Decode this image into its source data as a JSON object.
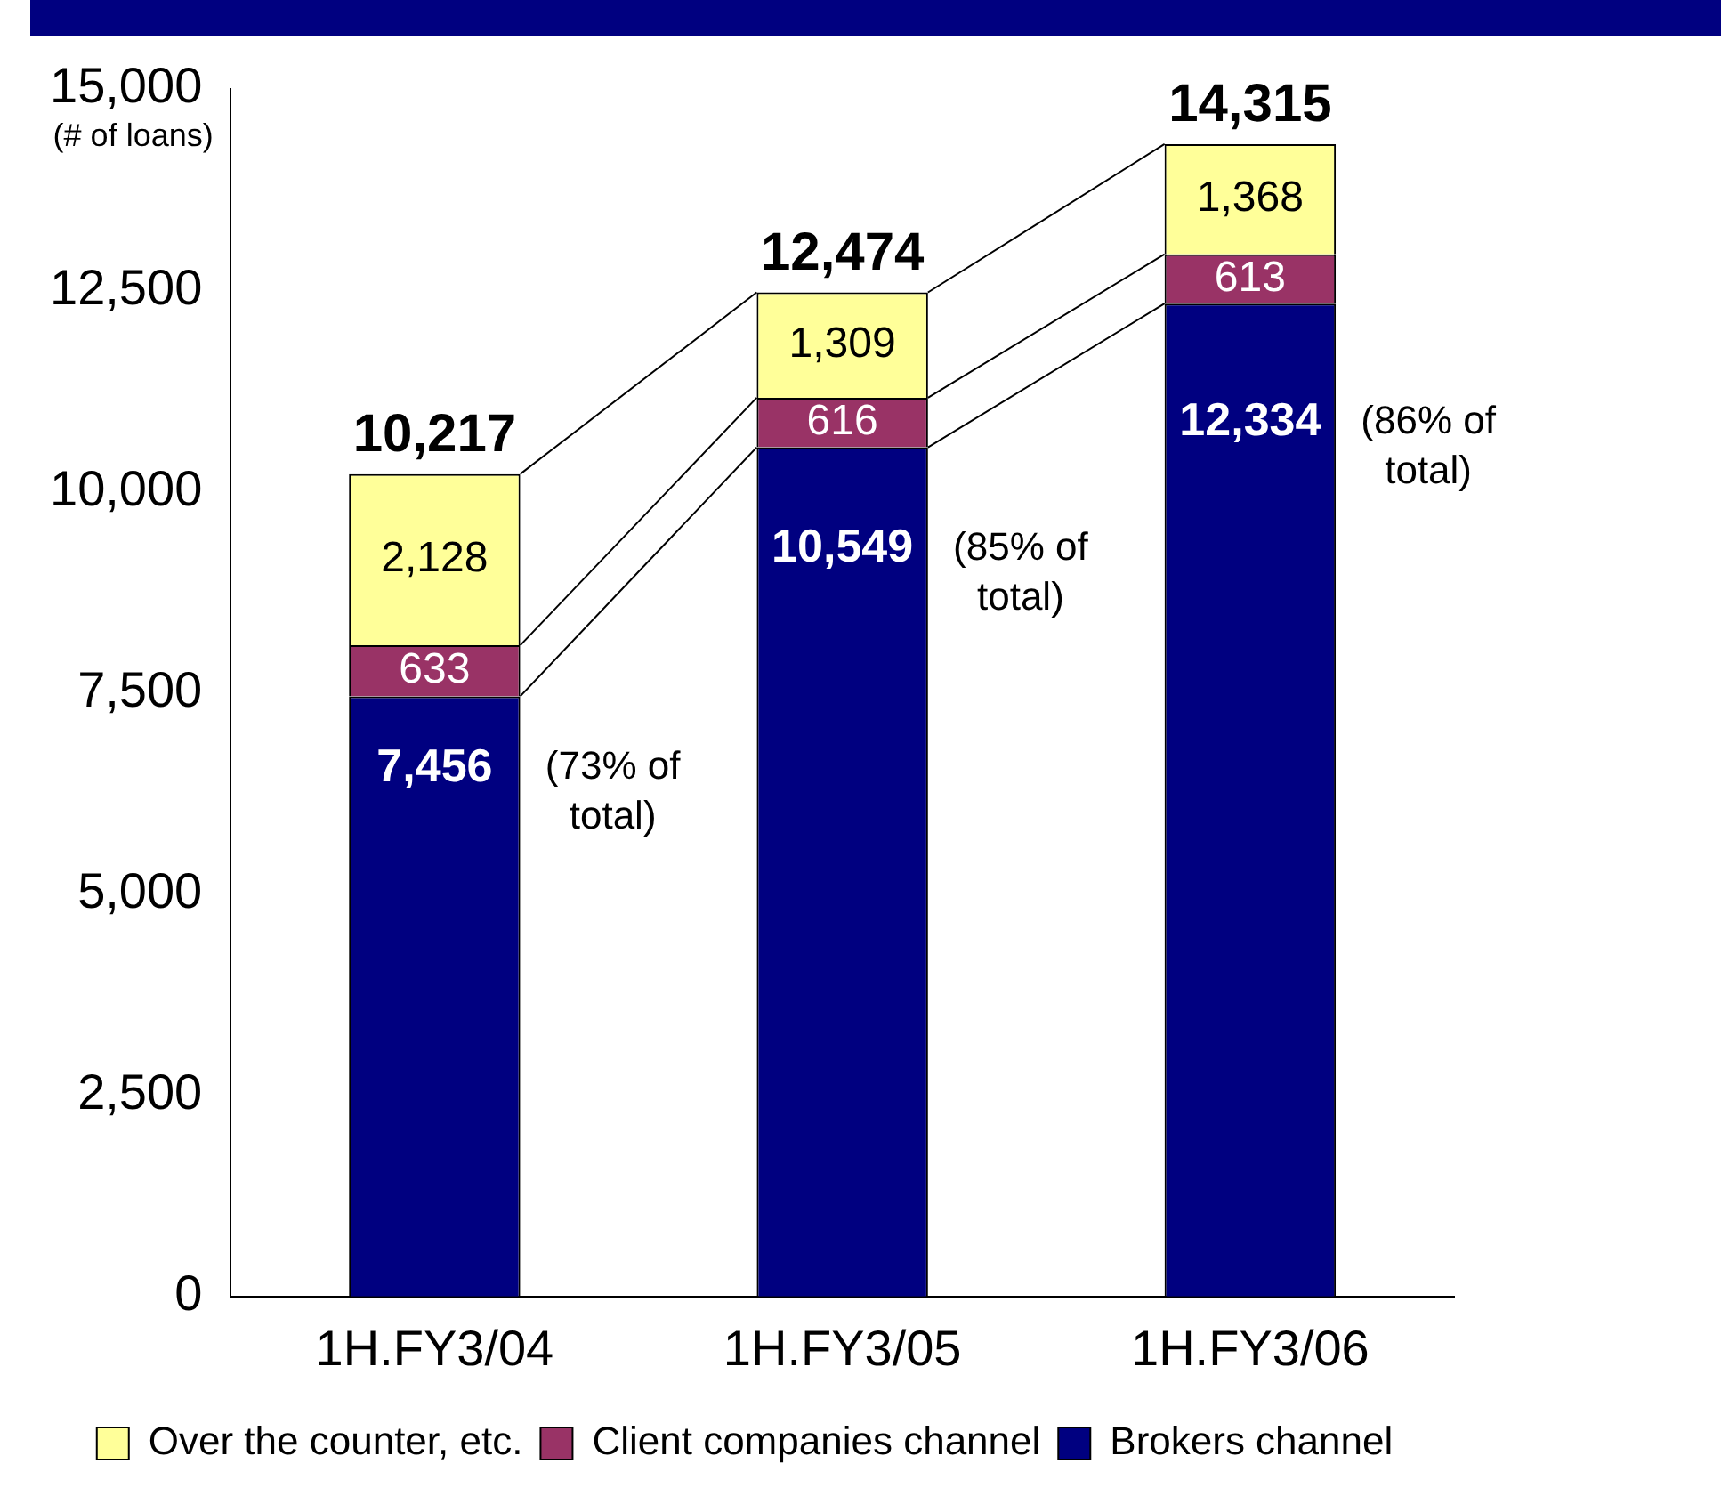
{
  "chart_data": {
    "type": "bar",
    "stacked": true,
    "ylabel": "(# of loans)",
    "categories": [
      "1H.FY3/04",
      "1H.FY3/05",
      "1H.FY3/06"
    ],
    "series": [
      {
        "name": "Brokers channel",
        "color": "#000080",
        "values": [
          7456,
          10549,
          12334
        ],
        "value_labels": [
          "7,456",
          "10,549",
          "12,334"
        ]
      },
      {
        "name": "Client companies channel",
        "color": "#993366",
        "values": [
          633,
          616,
          613
        ],
        "value_labels": [
          "633",
          "616",
          "613"
        ]
      },
      {
        "name": "Over the counter, etc.",
        "color": "#ffff99",
        "values": [
          2128,
          1309,
          1368
        ],
        "value_labels": [
          "2,128",
          "1,309",
          "1,368"
        ]
      }
    ],
    "totals": [
      "10,217",
      "12,474",
      "14,315"
    ],
    "annotations": [
      "(73% of total)",
      "(85% of total)",
      "(86% of total)"
    ],
    "ylim": [
      0,
      15000
    ],
    "yticks": [
      0,
      {
        "value": 2500,
        "label": "2,500"
      },
      {
        "value": 5000,
        "label": "5,000"
      },
      {
        "value": 7500,
        "label": "7,500"
      },
      {
        "value": 10000,
        "label": "10,000"
      },
      {
        "value": 12500,
        "label": "12,500"
      },
      {
        "value": 15000,
        "label": "15,000"
      }
    ],
    "grid": false,
    "legend": "bottom"
  }
}
